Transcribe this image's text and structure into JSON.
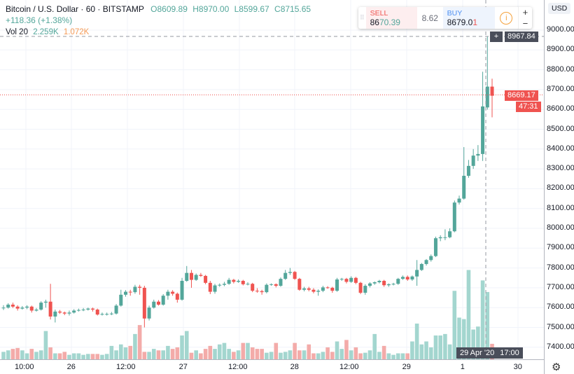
{
  "header": {
    "symbol": "Bitcoin / U.S. Dollar · 60 · BITSTAMP",
    "open": "O8609.89",
    "high": "H8970.00",
    "low": "L8599.67",
    "close": "C8715.65",
    "change": "+118.36 (+1.38%)"
  },
  "volume_legend": {
    "label": "Vol 20",
    "value": "2.259K",
    "ma": "1.072K"
  },
  "trade_widget": {
    "sell_label": "SELL",
    "sell_price_main": "86",
    "sell_price_tail": "70.39",
    "spread": "8.62",
    "buy_label": "BUY",
    "buy_price_main": "8679.0",
    "buy_price_tail": "1",
    "info_icon": "info-icon",
    "plus": "+",
    "minus": "−"
  },
  "currency": "USD",
  "price_axis": [
    "9000.00",
    "8900.00",
    "8800.00",
    "8700.00",
    "8600.00",
    "8500.00",
    "8400.00",
    "8300.00",
    "8200.00",
    "8100.00",
    "8000.00",
    "7900.00",
    "7800.00",
    "7700.00",
    "7600.00",
    "7500.00",
    "7400.00"
  ],
  "crosshair": {
    "price": "8967.84",
    "time": "29 Apr '20",
    "hour": "17:00"
  },
  "last_price": {
    "price": "8669.17",
    "countdown": "47:31"
  },
  "time_axis": [
    "10:00",
    "26",
    "12:00",
    "27",
    "12:00",
    "28",
    "12:00",
    "29",
    "1",
    "30"
  ],
  "colors": {
    "up": "#53a69a",
    "down": "#ef5350",
    "up_vol": "#a3d6cf",
    "down_vol": "#f3aba9",
    "crosshair_tag": "#4a4e5a"
  },
  "chart_data": {
    "type": "candlestick",
    "interval": "60",
    "ylim": [
      7370,
      9040
    ],
    "fields": [
      "open",
      "high",
      "low",
      "close",
      "volume_k"
    ],
    "candles": [
      [
        7598,
        7612,
        7588,
        7600,
        0.25
      ],
      [
        7600,
        7622,
        7595,
        7615,
        0.3
      ],
      [
        7615,
        7625,
        7598,
        7605,
        0.35
      ],
      [
        7605,
        7612,
        7585,
        7595,
        0.38
      ],
      [
        7595,
        7608,
        7590,
        7600,
        0.3
      ],
      [
        7600,
        7612,
        7592,
        7605,
        0.2
      ],
      [
        7605,
        7610,
        7575,
        7585,
        0.35
      ],
      [
        7585,
        7598,
        7580,
        7590,
        0.25
      ],
      [
        7590,
        7632,
        7585,
        7625,
        0.3
      ],
      [
        7625,
        7640,
        7600,
        7630,
        0.95
      ],
      [
        7630,
        7720,
        7540,
        7555,
        0.4
      ],
      [
        7555,
        7590,
        7525,
        7580,
        0.2
      ],
      [
        7580,
        7588,
        7568,
        7575,
        0.2
      ],
      [
        7575,
        7580,
        7562,
        7570,
        0.25
      ],
      [
        7570,
        7585,
        7560,
        7575,
        0.15
      ],
      [
        7575,
        7592,
        7570,
        7585,
        0.2
      ],
      [
        7585,
        7595,
        7580,
        7588,
        0.2
      ],
      [
        7588,
        7598,
        7582,
        7590,
        0.15
      ],
      [
        7590,
        7600,
        7585,
        7595,
        0.18
      ],
      [
        7595,
        7600,
        7580,
        7590,
        0.18
      ],
      [
        7590,
        7595,
        7560,
        7565,
        0.18
      ],
      [
        7565,
        7575,
        7560,
        7568,
        0.15
      ],
      [
        7568,
        7575,
        7560,
        7568,
        0.18
      ],
      [
        7568,
        7578,
        7562,
        7570,
        0.45
      ],
      [
        7570,
        7618,
        7565,
        7610,
        0.3
      ],
      [
        7610,
        7690,
        7605,
        7665,
        0.5
      ],
      [
        7665,
        7688,
        7655,
        7680,
        0.4
      ],
      [
        7680,
        7690,
        7660,
        7678,
        0.45
      ],
      [
        7678,
        7715,
        7670,
        7705,
        0.85
      ],
      [
        7705,
        7715,
        7665,
        7700,
        1.15
      ],
      [
        7700,
        7710,
        7500,
        7545,
        0.25
      ],
      [
        7545,
        7610,
        7535,
        7600,
        0.25
      ],
      [
        7600,
        7640,
        7595,
        7630,
        0.35
      ],
      [
        7630,
        7638,
        7610,
        7615,
        0.3
      ],
      [
        7615,
        7668,
        7610,
        7660,
        0.3
      ],
      [
        7660,
        7690,
        7640,
        7680,
        0.45
      ],
      [
        7680,
        7688,
        7660,
        7670,
        0.35
      ],
      [
        7670,
        7676,
        7625,
        7640,
        0.4
      ],
      [
        7640,
        7750,
        7635,
        7735,
        0.8
      ],
      [
        7735,
        7810,
        7730,
        7775,
        0.95
      ],
      [
        7775,
        7790,
        7700,
        7740,
        0.22
      ],
      [
        7740,
        7772,
        7735,
        7765,
        0.3
      ],
      [
        7765,
        7775,
        7755,
        7760,
        0.2
      ],
      [
        7760,
        7765,
        7718,
        7725,
        0.35
      ],
      [
        7725,
        7735,
        7668,
        7680,
        0.45
      ],
      [
        7680,
        7720,
        7670,
        7712,
        0.35
      ],
      [
        7712,
        7722,
        7705,
        7715,
        0.5
      ],
      [
        7715,
        7730,
        7708,
        7720,
        0.55
      ],
      [
        7720,
        7750,
        7715,
        7740,
        0.35
      ],
      [
        7740,
        7745,
        7722,
        7730,
        0.25
      ],
      [
        7730,
        7742,
        7725,
        7735,
        0.3
      ],
      [
        7735,
        7740,
        7712,
        7718,
        0.55
      ],
      [
        7718,
        7728,
        7712,
        7720,
        0.55
      ],
      [
        7720,
        7725,
        7678,
        7685,
        0.4
      ],
      [
        7685,
        7698,
        7675,
        7683,
        0.35
      ],
      [
        7683,
        7690,
        7665,
        7678,
        0.35
      ],
      [
        7678,
        7722,
        7672,
        7715,
        0.22
      ],
      [
        7715,
        7722,
        7710,
        7718,
        0.25
      ],
      [
        7718,
        7722,
        7702,
        7710,
        0.55
      ],
      [
        7710,
        7752,
        7705,
        7745,
        0.22
      ],
      [
        7745,
        7790,
        7740,
        7775,
        0.25
      ],
      [
        7775,
        7800,
        7765,
        7780,
        0.3
      ],
      [
        7780,
        7785,
        7740,
        7745,
        0.55
      ],
      [
        7745,
        7750,
        7685,
        7690,
        0.3
      ],
      [
        7690,
        7705,
        7682,
        7697,
        0.3
      ],
      [
        7697,
        7705,
        7682,
        7690,
        0.5
      ],
      [
        7690,
        7698,
        7672,
        7680,
        0.2
      ],
      [
        7680,
        7692,
        7660,
        7685,
        0.2
      ],
      [
        7685,
        7710,
        7678,
        7702,
        0.25
      ],
      [
        7702,
        7708,
        7695,
        7700,
        0.4
      ],
      [
        7700,
        7705,
        7675,
        7685,
        0.25
      ],
      [
        7685,
        7750,
        7680,
        7742,
        0.6
      ],
      [
        7742,
        7750,
        7735,
        7745,
        0.35
      ],
      [
        7745,
        7750,
        7722,
        7730,
        0.65
      ],
      [
        7730,
        7758,
        7725,
        7750,
        0.3
      ],
      [
        7750,
        7755,
        7718,
        7725,
        0.4
      ],
      [
        7725,
        7730,
        7668,
        7675,
        0.2
      ],
      [
        7675,
        7718,
        7665,
        7710,
        0.22
      ],
      [
        7710,
        7728,
        7702,
        7722,
        0.3
      ],
      [
        7722,
        7732,
        7715,
        7728,
        0.85
      ],
      [
        7728,
        7740,
        7722,
        7735,
        0.25
      ],
      [
        7735,
        7740,
        7705,
        7713,
        0.45
      ],
      [
        7713,
        7722,
        7705,
        7718,
        0.2
      ],
      [
        7718,
        7725,
        7712,
        7720,
        0.15
      ],
      [
        7720,
        7750,
        7715,
        7745,
        0.2
      ],
      [
        7745,
        7762,
        7740,
        7755,
        0.2
      ],
      [
        7755,
        7762,
        7735,
        7742,
        0.2
      ],
      [
        7742,
        7762,
        7735,
        7757,
        0.6
      ],
      [
        7757,
        7840,
        7710,
        7790,
        1.2
      ],
      [
        7790,
        7825,
        7785,
        7820,
        0.5
      ],
      [
        7820,
        7845,
        7812,
        7840,
        0.6
      ],
      [
        7840,
        7868,
        7832,
        7860,
        0.4
      ],
      [
        7860,
        7958,
        7855,
        7950,
        0.8
      ],
      [
        7950,
        7965,
        7935,
        7955,
        0.8
      ],
      [
        7955,
        7995,
        7940,
        7955,
        0.85
      ],
      [
        7955,
        8000,
        7950,
        7985,
        0.5
      ],
      [
        7985,
        8140,
        7980,
        8130,
        2.3
      ],
      [
        8130,
        8165,
        8120,
        8150,
        1.4
      ],
      [
        8150,
        8410,
        8145,
        8265,
        1.35
      ],
      [
        8265,
        8345,
        8255,
        8315,
        3.0
      ],
      [
        8315,
        8400,
        8300,
        8367,
        1.0
      ],
      [
        8367,
        8420,
        8340,
        8375,
        1.1
      ],
      [
        8375,
        8790,
        8340,
        8615,
        2.65
      ],
      [
        8610,
        8970,
        8599,
        8715,
        2.26
      ],
      [
        8715,
        8755,
        8560,
        8669,
        0.52
      ]
    ]
  }
}
